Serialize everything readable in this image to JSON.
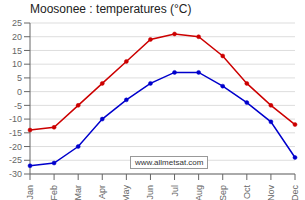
{
  "chart_data": {
    "type": "line",
    "title": "Moosonee : temperatures (°C)",
    "categories": [
      "Jan",
      "Feb",
      "Mar",
      "Apr",
      "May",
      "Jun",
      "Jul",
      "Aug",
      "Sep",
      "Oct",
      "Nov",
      "Dec"
    ],
    "series": [
      {
        "color": "#cc0000",
        "marker": "circle",
        "values": [
          -14,
          -13,
          -5,
          3,
          11,
          19,
          21,
          20,
          13,
          3,
          -5,
          -12
        ]
      },
      {
        "color": "#0000cc",
        "marker": "circle",
        "values": [
          -27,
          -26,
          -20,
          -10,
          -3,
          3,
          7,
          7,
          2,
          -4,
          -11,
          -24
        ]
      }
    ],
    "ylim": [
      -30,
      25
    ],
    "yticks": [
      -30,
      -25,
      -20,
      -15,
      -10,
      -5,
      0,
      5,
      10,
      15,
      20,
      25
    ],
    "grid": true,
    "annotations": [
      "www.allmetsat.com"
    ]
  }
}
